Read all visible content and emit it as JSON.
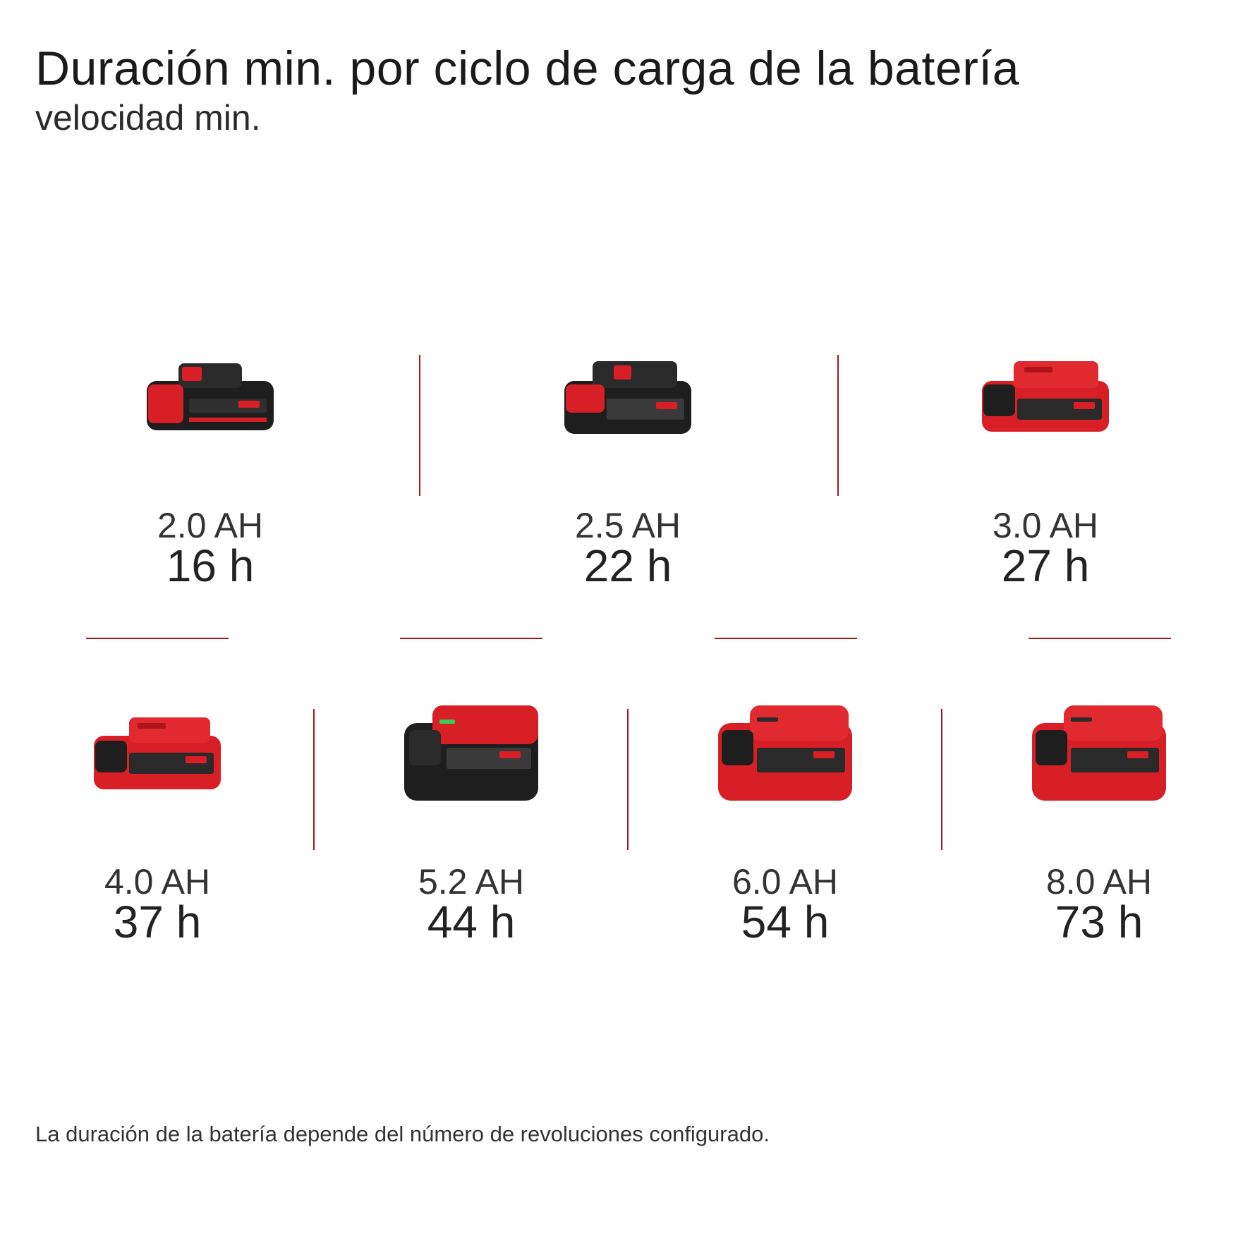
{
  "header": {
    "title": "Duración min. por ciclo de carga de la batería",
    "subtitle": "velocidad min."
  },
  "colors": {
    "accent": "#a01822",
    "battery_red": "#d81f26",
    "battery_dark": "#222222"
  },
  "batteries_row1": [
    {
      "capacity": "2.0 AH",
      "duration": "16 h",
      "style": "dark"
    },
    {
      "capacity": "2.5 AH",
      "duration": "22 h",
      "style": "dark"
    },
    {
      "capacity": "3.0 AH",
      "duration": "27 h",
      "style": "red"
    }
  ],
  "batteries_row2": [
    {
      "capacity": "4.0 AH",
      "duration": "37 h",
      "style": "red"
    },
    {
      "capacity": "5.2 AH",
      "duration": "44 h",
      "style": "dark-large"
    },
    {
      "capacity": "6.0 AH",
      "duration": "54 h",
      "style": "red-large"
    },
    {
      "capacity": "8.0 AH",
      "duration": "73 h",
      "style": "red-large"
    }
  ],
  "footnote": "La duración de la batería depende del número de revoluciones configurado."
}
